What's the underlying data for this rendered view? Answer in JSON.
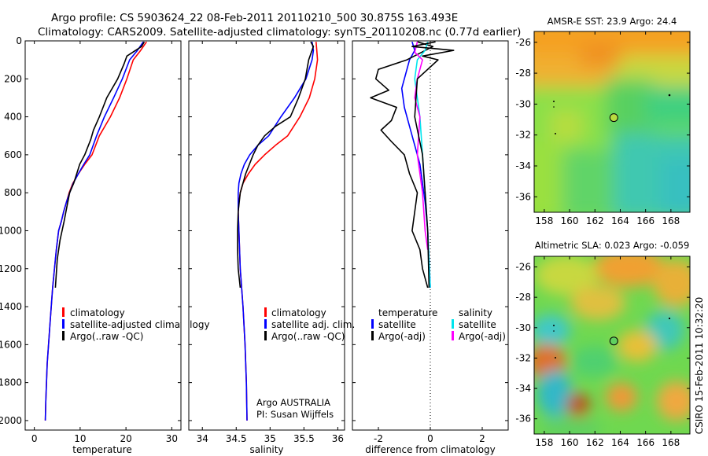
{
  "header": {
    "line1": "Argo profile: CS 5903624_22 08-Feb-2011 20110210_500 30.875S 163.493E",
    "line2": "Climatology: CARS2009. Satellite-adjusted climatology: synTS_20110208.nc (0.77d earlier)"
  },
  "side_label": "CSIRO 15-Feb-2011 10:32:20",
  "colors": {
    "climatology": "#ff0000",
    "satellite": "#0000ff",
    "argo": "#000000",
    "salinity_satellite": "#00e5ee",
    "salinity_argo": "#ff00ff"
  },
  "chart_data": [
    {
      "type": "line",
      "id": "temperature",
      "xlabel": "temperature",
      "ylabel": "",
      "xlim": [
        -2,
        32
      ],
      "ylim": [
        2050,
        0
      ],
      "xticks": [
        0,
        10,
        20,
        30
      ],
      "yticks": [
        0,
        200,
        400,
        600,
        800,
        1000,
        1200,
        1400,
        1600,
        1800,
        2000
      ],
      "legend": [
        "climatology",
        "satellite-adjusted climatology",
        "Argo(..raw -QC)"
      ],
      "series": [
        {
          "name": "climatology",
          "color": "#ff0000",
          "x": [
            24.5,
            23.2,
            21.6,
            20.2,
            18.6,
            16.6,
            14.2,
            12.6,
            11.0,
            9.6,
            8.4,
            7.6,
            7.0,
            6.4,
            5.9,
            5.3,
            4.8,
            4.0,
            3.4,
            2.8,
            2.5,
            2.4
          ],
          "y": [
            5,
            50,
            100,
            200,
            300,
            400,
            500,
            600,
            650,
            700,
            750,
            800,
            850,
            900,
            950,
            1000,
            1100,
            1300,
            1500,
            1700,
            1900,
            2000
          ]
        },
        {
          "name": "satellite-adjusted climatology",
          "color": "#0000ff",
          "x": [
            23.8,
            22.5,
            20.8,
            19.2,
            17.3,
            15.3,
            13.6,
            12.1,
            10.8,
            9.6,
            8.5,
            7.7,
            7.0,
            6.4,
            5.9,
            5.3,
            4.8,
            4.0,
            3.4,
            2.8,
            2.5,
            2.4
          ],
          "y": [
            5,
            50,
            100,
            200,
            300,
            400,
            500,
            600,
            650,
            700,
            750,
            800,
            850,
            900,
            950,
            1000,
            1100,
            1300,
            1500,
            1700,
            1900,
            2000
          ]
        },
        {
          "name": "Argo(..raw -QC)",
          "color": "#000000",
          "x": [
            24.0,
            23.4,
            20.2,
            19.6,
            18.2,
            15.8,
            14.2,
            12.9,
            12.3,
            11.0,
            9.9,
            8.6,
            7.7,
            6.9,
            6.5,
            5.6,
            5.0,
            4.6
          ],
          "y": [
            5,
            30,
            80,
            120,
            200,
            300,
            400,
            470,
            520,
            600,
            650,
            750,
            800,
            900,
            950,
            1050,
            1150,
            1300
          ]
        }
      ]
    },
    {
      "type": "line",
      "id": "salinity",
      "xlabel": "salinity",
      "ylabel": "",
      "xlim": [
        33.8,
        36.1
      ],
      "ylim": [
        2050,
        0
      ],
      "xticks": [
        34,
        34.5,
        35,
        35.5,
        36
      ],
      "xticklabels": [
        "34",
        "34.5",
        "35",
        "35.5",
        "36"
      ],
      "legend": [
        "climatology",
        "satellite adj. clim.",
        "Argo(..raw -QC)"
      ],
      "annotations": [
        "Argo AUSTRALIA",
        "PI: Susan Wijffels"
      ],
      "series": [
        {
          "name": "climatology",
          "color": "#ff0000",
          "x": [
            35.68,
            35.69,
            35.7,
            35.66,
            35.58,
            35.44,
            35.26,
            35.08,
            34.92,
            34.78,
            34.68,
            34.6,
            34.56,
            34.54,
            34.53,
            34.54,
            34.56,
            34.6,
            34.63,
            34.65,
            34.66
          ],
          "y": [
            5,
            50,
            100,
            200,
            300,
            400,
            500,
            550,
            600,
            650,
            700,
            750,
            800,
            850,
            900,
            1000,
            1200,
            1400,
            1600,
            1800,
            2000
          ]
        },
        {
          "name": "satellite adj. clim.",
          "color": "#0000ff",
          "x": [
            35.62,
            35.64,
            35.62,
            35.53,
            35.36,
            35.16,
            34.98,
            34.82,
            34.7,
            34.62,
            34.57,
            34.54,
            34.53,
            34.53,
            34.54,
            34.56,
            34.6,
            34.63,
            34.65,
            34.66
          ],
          "y": [
            5,
            50,
            100,
            200,
            300,
            400,
            500,
            550,
            600,
            650,
            700,
            750,
            800,
            900,
            1000,
            1200,
            1400,
            1600,
            1800,
            2000
          ]
        },
        {
          "name": "Argo(..raw -QC)",
          "color": "#000000",
          "x": [
            35.6,
            35.64,
            35.57,
            35.52,
            35.42,
            35.3,
            35.08,
            34.92,
            34.82,
            34.75,
            34.64,
            34.56,
            34.53,
            34.52,
            34.52,
            34.53,
            34.56
          ],
          "y": [
            5,
            30,
            100,
            200,
            300,
            400,
            450,
            500,
            550,
            600,
            700,
            800,
            900,
            1000,
            1100,
            1200,
            1300
          ]
        }
      ]
    },
    {
      "type": "line",
      "id": "difference",
      "xlabel": "difference from climatology",
      "ylabel": "",
      "xlim": [
        -3,
        3
      ],
      "ylim": [
        2050,
        0
      ],
      "xticks": [
        -2,
        0,
        2
      ],
      "legend_header_temperature": "temperature",
      "legend_header_salinity": "salinity",
      "legend_temperature": [
        "satellite",
        "Argo(-adj)"
      ],
      "legend_salinity": [
        "satellite",
        "Argo(-adj)"
      ],
      "series": [
        {
          "name": "temperature satellite",
          "color": "#0000ff",
          "x": [
            -0.7,
            -0.6,
            -0.8,
            -1.0,
            -1.1,
            -1.0,
            -0.8,
            -0.6,
            -0.4,
            -0.3,
            -0.2,
            -0.1,
            -0.05,
            0
          ],
          "y": [
            5,
            50,
            100,
            200,
            250,
            350,
            450,
            550,
            650,
            750,
            850,
            1000,
            1150,
            1300
          ]
        },
        {
          "name": "temperature Argo(-adj)",
          "color": "#000000",
          "x": [
            -0.5,
            0.1,
            -0.9,
            -2.0,
            -2.1,
            -1.6,
            -2.3,
            -1.3,
            -1.5,
            -1.9,
            -1.5,
            -1.0,
            -0.8,
            -0.5,
            -0.6,
            -0.7,
            -0.4,
            -0.3,
            -0.1
          ],
          "y": [
            5,
            30,
            100,
            150,
            200,
            260,
            300,
            350,
            420,
            470,
            530,
            600,
            700,
            800,
            900,
            1000,
            1100,
            1200,
            1300
          ]
        },
        {
          "name": "salinity satellite",
          "color": "#00e5ee",
          "x": [
            -0.1,
            -0.2,
            -0.5,
            -0.6,
            -0.5,
            -0.4,
            -0.3,
            -0.2,
            -0.1,
            0
          ],
          "y": [
            5,
            50,
            100,
            200,
            300,
            400,
            600,
            800,
            1000,
            1300
          ]
        },
        {
          "name": "salinity Argo(-adj)",
          "color": "#ff00ff",
          "x": [
            -0.5,
            -0.6,
            -0.3,
            -0.5,
            -0.6,
            -0.4,
            -0.5,
            -0.3,
            -0.2,
            -0.1
          ],
          "y": [
            5,
            60,
            100,
            200,
            300,
            400,
            600,
            800,
            1000,
            1100
          ]
        },
        {
          "name": "salinity raw",
          "color": "#000000",
          "x": [
            0.2,
            -0.7,
            0.9,
            -0.3,
            0.3,
            -0.5,
            -0.6,
            -0.3,
            -0.2,
            -0.1,
            -0.05
          ],
          "y": [
            5,
            30,
            50,
            80,
            100,
            200,
            400,
            600,
            800,
            1000,
            1300
          ]
        }
      ]
    },
    {
      "type": "heatmap",
      "id": "sst_map",
      "title": "AMSR-E SST: 23.9 Argo: 24.4",
      "xlim": [
        157.2,
        169.5
      ],
      "ylim": [
        -37,
        -25.3
      ],
      "xticks": [
        158,
        160,
        162,
        164,
        166,
        168
      ],
      "yticks": [
        -26,
        -28,
        -30,
        -32,
        -34,
        -36
      ],
      "argo_position": {
        "lon": 163.493,
        "lat": -30.875
      }
    },
    {
      "type": "heatmap",
      "id": "sla_map",
      "title": "Altimetric SLA: 0.023 Argo: -0.059",
      "xlim": [
        157.2,
        169.5
      ],
      "ylim": [
        -37,
        -25.3
      ],
      "xticks": [
        158,
        160,
        162,
        164,
        166,
        168
      ],
      "yticks": [
        -26,
        -28,
        -30,
        -32,
        -34,
        -36
      ],
      "argo_position": {
        "lon": 163.493,
        "lat": -30.875
      }
    }
  ]
}
